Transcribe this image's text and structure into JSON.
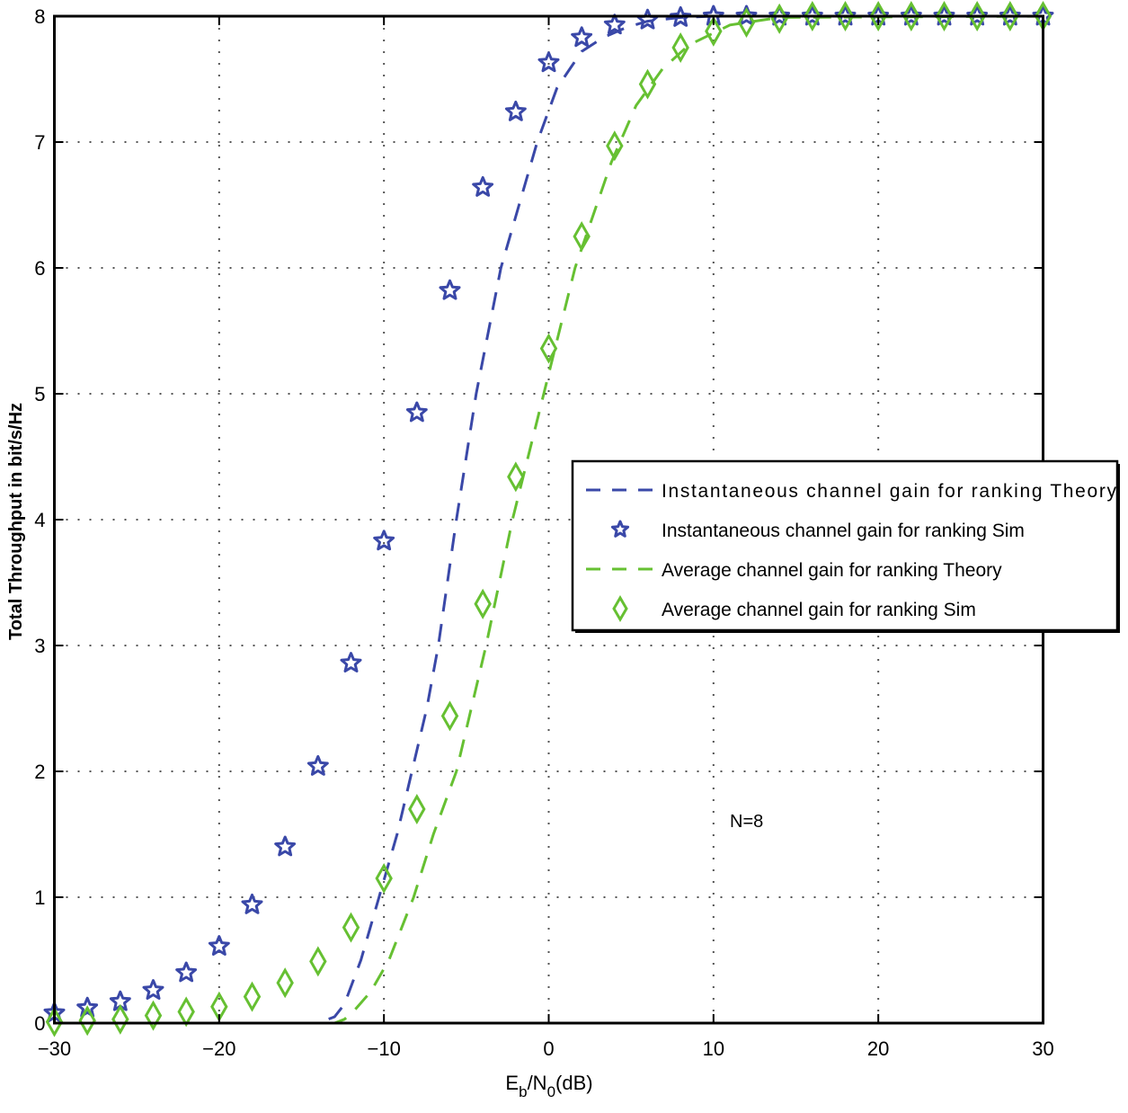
{
  "chart_data": {
    "type": "line",
    "title": "",
    "xlabel": "E_b/N_0(dB)",
    "xlabel_parts": {
      "E": "E",
      "b": "b",
      "slash": "/N",
      "zero": "0",
      "unit": "(dB)"
    },
    "ylabel": "Total Throughput in bit/s/Hz",
    "xlim": [
      -30,
      30
    ],
    "ylim": [
      0,
      8
    ],
    "xticks": [
      -30,
      -20,
      -10,
      0,
      10,
      20,
      30
    ],
    "yticks": [
      0,
      1,
      2,
      3,
      4,
      5,
      6,
      7,
      8
    ],
    "grid": true,
    "legend_position": "center-right",
    "annotation": "N=8",
    "colors": {
      "blue": "#3a48a8",
      "green": "#66c032"
    },
    "series": [
      {
        "name": "Instantaneous channel gain for ranking Theory",
        "style": "dashed",
        "marker": "none",
        "color": "#3a48a8",
        "x": [
          -30,
          -14,
          -13,
          -12.4,
          -11.4,
          -10.3,
          -9.2,
          -8.3,
          -7.4,
          -6.7,
          -5.6,
          -4.4,
          -2.9,
          -1.8,
          -0.7,
          0.5,
          2,
          3.3,
          4.7,
          6,
          8,
          10,
          30
        ],
        "y": [
          0,
          0,
          0.05,
          0.15,
          0.5,
          1,
          1.5,
          2,
          2.5,
          3,
          4,
          5,
          6,
          6.5,
          7,
          7.43,
          7.72,
          7.83,
          7.91,
          7.96,
          7.99,
          8,
          8
        ]
      },
      {
        "name": "Instantaneous channel gain for ranking Sim",
        "style": "none",
        "marker": "star",
        "color": "#3a48a8",
        "x": [
          -30,
          -28,
          -26,
          -24,
          -22,
          -20,
          -18,
          -16,
          -14,
          -12,
          -10,
          -8,
          -6,
          -4,
          -2,
          0,
          2,
          4,
          6,
          8,
          10,
          12,
          14,
          16,
          18,
          20,
          22,
          24,
          26,
          28,
          30
        ],
        "y": [
          0.08,
          0.12,
          0.17,
          0.26,
          0.4,
          0.61,
          0.94,
          1.4,
          2.04,
          2.86,
          3.83,
          4.85,
          5.82,
          6.64,
          7.24,
          7.63,
          7.83,
          7.93,
          7.97,
          7.99,
          8,
          8,
          8,
          8,
          8,
          8,
          8,
          8,
          8,
          8,
          8
        ]
      },
      {
        "name": "Average channel gain for ranking Theory",
        "style": "dashed",
        "marker": "none",
        "color": "#66c032",
        "x": [
          -30,
          -13,
          -12.4,
          -11.8,
          -10.8,
          -9.7,
          -8.2,
          -7.0,
          -5.6,
          -3.8,
          -2.2,
          -0.3,
          1.6,
          3.8,
          5.3,
          6.9,
          8.5,
          11,
          14,
          30
        ],
        "y": [
          0,
          0,
          0.03,
          0.1,
          0.25,
          0.5,
          1,
          1.5,
          2,
          3,
          4,
          5,
          6,
          6.84,
          7.29,
          7.58,
          7.77,
          7.93,
          7.99,
          8
        ]
      },
      {
        "name": "Average channel gain for ranking Sim",
        "style": "none",
        "marker": "diamond",
        "color": "#66c032",
        "x": [
          -30,
          -28,
          -26,
          -24,
          -22,
          -20,
          -18,
          -16,
          -14,
          -12,
          -10,
          -8,
          -6,
          -4,
          -2,
          0,
          2,
          4,
          6,
          8,
          10,
          12,
          14,
          16,
          18,
          20,
          22,
          24,
          26,
          28,
          30
        ],
        "y": [
          0.01,
          0.02,
          0.03,
          0.06,
          0.09,
          0.13,
          0.21,
          0.32,
          0.49,
          0.76,
          1.15,
          1.7,
          2.44,
          3.33,
          4.34,
          5.36,
          6.25,
          6.97,
          7.46,
          7.75,
          7.88,
          7.95,
          7.98,
          8,
          8,
          8,
          8,
          8,
          8,
          8,
          8
        ]
      }
    ]
  },
  "legend": {
    "items": [
      {
        "label": "Instantaneous channel gain for ranking Theory",
        "kind": "dashed",
        "color": "#3a48a8"
      },
      {
        "label": "Instantaneous channel gain for ranking Sim",
        "kind": "star",
        "color": "#3a48a8"
      },
      {
        "label": "Average channel gain for ranking Theory",
        "kind": "dashed",
        "color": "#66c032"
      },
      {
        "label": "Average channel gain for ranking Sim",
        "kind": "diamond",
        "color": "#66c032"
      }
    ]
  }
}
